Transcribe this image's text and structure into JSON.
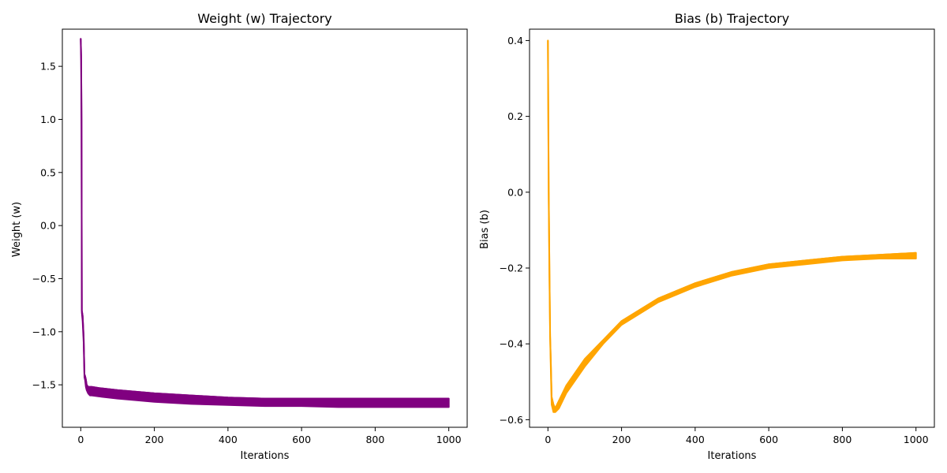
{
  "chart_data": [
    {
      "type": "line",
      "title": "Weight (w) Trajectory",
      "xlabel": "Iterations",
      "ylabel": "Weight (w)",
      "xlim": [
        -50,
        1050
      ],
      "ylim": [
        -1.9,
        1.85
      ],
      "xticks": [
        0,
        200,
        400,
        600,
        800,
        1000
      ],
      "xtick_labels": [
        "0",
        "200",
        "400",
        "600",
        "800",
        "1000"
      ],
      "yticks": [
        -1.5,
        -1.0,
        -0.5,
        0.0,
        0.5,
        1.0,
        1.5
      ],
      "ytick_labels": [
        "−1.5",
        "−1.0",
        "−0.5",
        "0.0",
        "0.5",
        "1.0",
        "1.5"
      ],
      "grid": false,
      "series": [
        {
          "color": "#800080",
          "x": [
            0,
            1,
            2,
            3,
            5,
            8,
            10,
            12,
            14,
            16,
            20,
            25,
            30,
            50,
            100,
            200,
            300,
            400,
            500,
            600,
            700,
            800,
            900,
            1000
          ],
          "y_upper": [
            1.76,
            1.6,
            1.0,
            -0.8,
            -0.85,
            -1.05,
            -1.4,
            -1.42,
            -1.45,
            -1.5,
            -1.52,
            -1.52,
            -1.52,
            -1.53,
            -1.55,
            -1.58,
            -1.6,
            -1.62,
            -1.63,
            -1.63,
            -1.63,
            -1.63,
            -1.63,
            -1.63
          ],
          "y_lower": [
            1.74,
            1.55,
            0.9,
            -0.82,
            -0.9,
            -1.1,
            -1.43,
            -1.46,
            -1.52,
            -1.55,
            -1.58,
            -1.6,
            -1.6,
            -1.61,
            -1.63,
            -1.66,
            -1.68,
            -1.69,
            -1.7,
            -1.7,
            -1.71,
            -1.71,
            -1.71,
            -1.71
          ]
        }
      ]
    },
    {
      "type": "line",
      "title": "Bias (b) Trajectory",
      "xlabel": "Iterations",
      "ylabel": "Bias (b)",
      "xlim": [
        -50,
        1050
      ],
      "ylim": [
        -0.62,
        0.43
      ],
      "xticks": [
        0,
        200,
        400,
        600,
        800,
        1000
      ],
      "xtick_labels": [
        "0",
        "200",
        "400",
        "600",
        "800",
        "1000"
      ],
      "yticks": [
        -0.6,
        -0.4,
        -0.2,
        0.0,
        0.2,
        0.4
      ],
      "ytick_labels": [
        "−0.6",
        "−0.4",
        "−0.2",
        "0.0",
        "0.2",
        "0.4"
      ],
      "grid": false,
      "series": [
        {
          "color": "#FFA500",
          "x": [
            0,
            2,
            4,
            6,
            8,
            10,
            15,
            20,
            30,
            50,
            100,
            150,
            200,
            300,
            400,
            500,
            600,
            700,
            800,
            900,
            1000
          ],
          "y_upper": [
            0.4,
            0.0,
            -0.2,
            -0.38,
            -0.45,
            -0.54,
            -0.56,
            -0.57,
            -0.55,
            -0.51,
            -0.44,
            -0.39,
            -0.34,
            -0.28,
            -0.24,
            -0.21,
            -0.19,
            -0.18,
            -0.17,
            -0.165,
            -0.16
          ],
          "y_lower": [
            0.39,
            -0.02,
            -0.22,
            -0.38,
            -0.47,
            -0.56,
            -0.58,
            -0.58,
            -0.57,
            -0.53,
            -0.46,
            -0.4,
            -0.35,
            -0.29,
            -0.25,
            -0.22,
            -0.2,
            -0.19,
            -0.18,
            -0.175,
            -0.175
          ]
        }
      ]
    }
  ]
}
